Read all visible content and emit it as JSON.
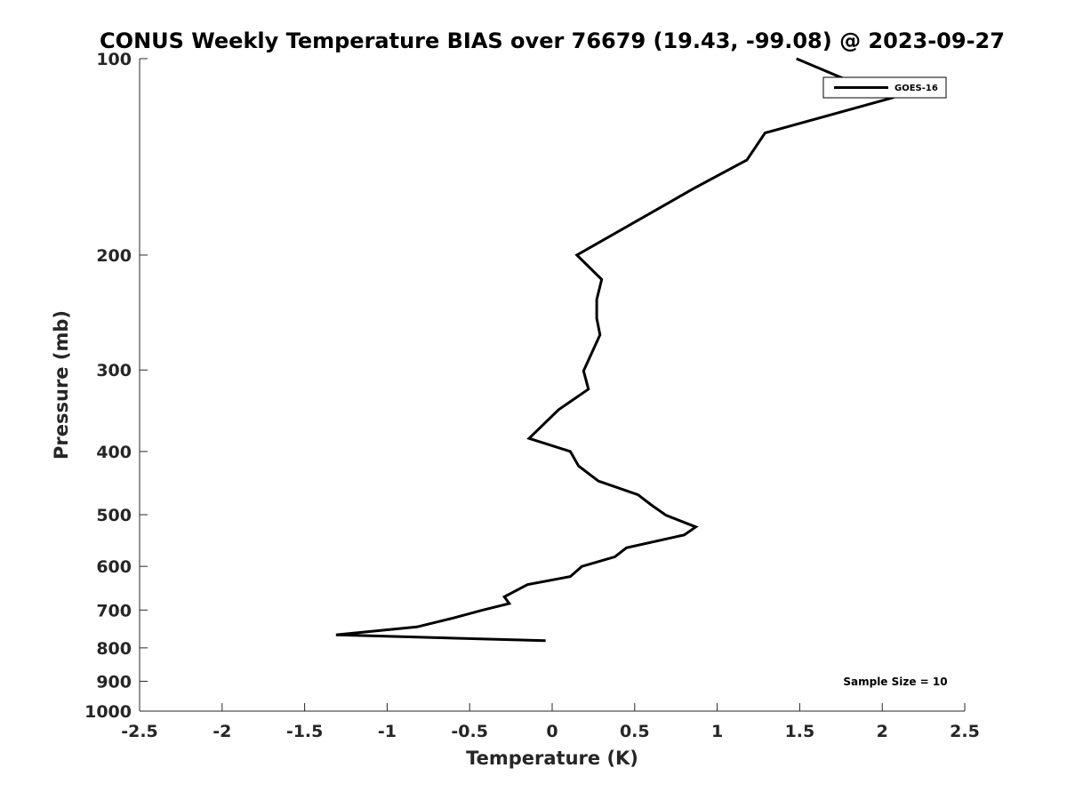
{
  "chart_data": {
    "type": "line",
    "title": "CONUS Weekly Temperature BIAS over 76679 (19.43, -99.08) @ 2023-09-27",
    "xlabel": "Temperature (K)",
    "ylabel": "Pressure (mb)",
    "xlim": [
      -2.5,
      2.5
    ],
    "ylim": [
      100,
      1000
    ],
    "yscale": "log",
    "yreversed": true,
    "xticks": [
      "-2.5",
      "-2",
      "-1.5",
      "-1",
      "-0.5",
      "0",
      "0.5",
      "1",
      "1.5",
      "2",
      "2.5"
    ],
    "yticks": [
      "100",
      "200",
      "300",
      "400",
      "500",
      "600",
      "700",
      "800",
      "900",
      "1000"
    ],
    "grid": false,
    "legend_position": "top-right",
    "series": [
      {
        "name": "GOES-16",
        "color": "#000000",
        "points": [
          [
            1.48,
            100
          ],
          [
            2.05,
            115
          ],
          [
            1.29,
            130
          ],
          [
            1.18,
            143
          ],
          [
            0.86,
            158
          ],
          [
            0.15,
            200
          ],
          [
            0.3,
            218
          ],
          [
            0.27,
            234
          ],
          [
            0.27,
            250
          ],
          [
            0.29,
            265
          ],
          [
            0.19,
            301
          ],
          [
            0.22,
            321
          ],
          [
            0.04,
            345
          ],
          [
            -0.14,
            382
          ],
          [
            0.11,
            400
          ],
          [
            0.16,
            421
          ],
          [
            0.28,
            444
          ],
          [
            0.52,
            466
          ],
          [
            0.6,
            483
          ],
          [
            0.69,
            501
          ],
          [
            0.87,
            522
          ],
          [
            0.8,
            537
          ],
          [
            0.45,
            562
          ],
          [
            0.38,
            580
          ],
          [
            0.18,
            600
          ],
          [
            0.11,
            622
          ],
          [
            -0.15,
            640
          ],
          [
            -0.29,
            668
          ],
          [
            -0.26,
            684
          ],
          [
            -0.42,
            700
          ],
          [
            -0.6,
            720
          ],
          [
            -0.82,
            743
          ],
          [
            -1.31,
            764
          ],
          [
            -0.04,
            780
          ]
        ]
      }
    ]
  },
  "annotation": "Sample Size = 10"
}
